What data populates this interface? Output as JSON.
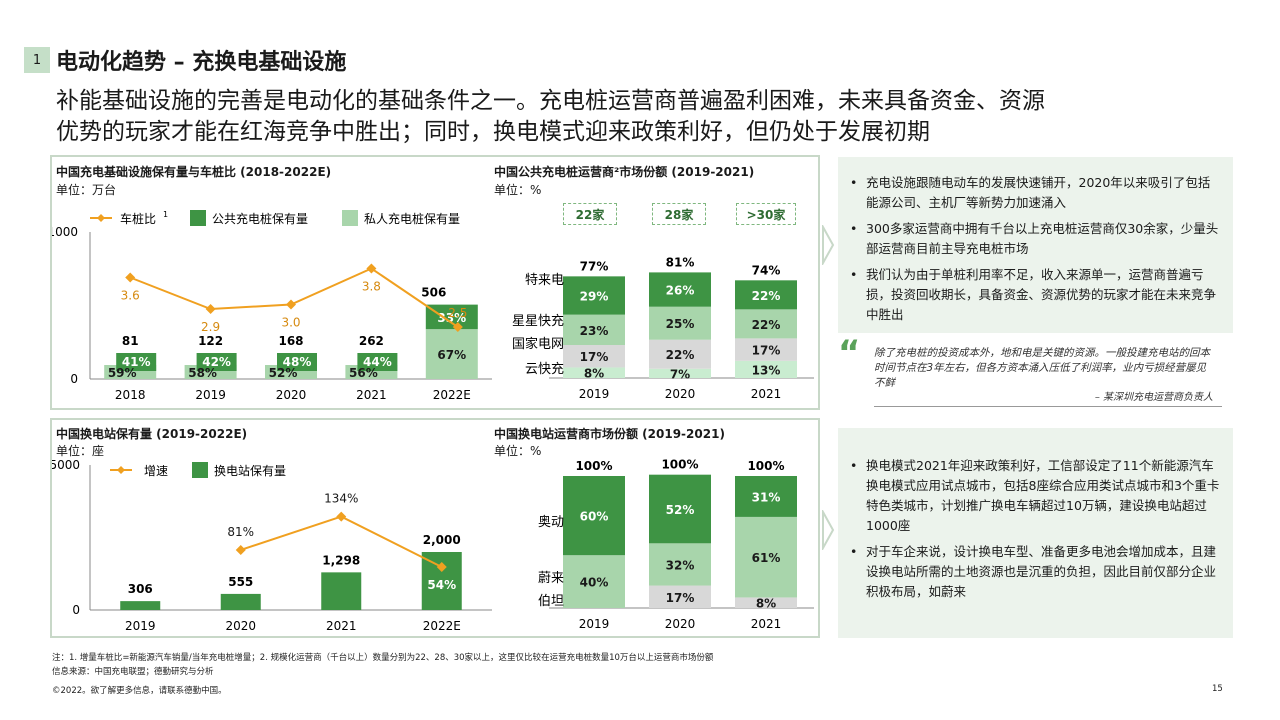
{
  "header": {
    "badge": "1",
    "title": "电动化趋势 – 充换电基础设施",
    "subtitle_line1": "补能基础设施的完善是电动化的基础条件之一。充电桩运营商普遍盈利困难，未来具备资金、资源",
    "subtitle_line2": "优势的玩家才能在红海竞争中胜出；同时，换电模式迎来政策利好，但仍处于发展初期"
  },
  "charging_infra": {
    "title": "中国充电基础设施保有量与车桩比 (2018-2022E)",
    "unit": "单位：万台",
    "legend": {
      "ratio": "车桩比",
      "ratio_sup": "1",
      "public": "公共充电桩保有量",
      "private": "私人充电桩保有量"
    },
    "y_ticks": [
      "1000",
      "0"
    ]
  },
  "operator_share": {
    "title": "中国公共充电桩运营商²市场份额 (2019-2021)",
    "unit": "单位：%",
    "tags": [
      "22家",
      "28家",
      ">30家"
    ],
    "row_labels": [
      "特来电",
      "星星快充",
      "国家电网",
      "云快充"
    ]
  },
  "swap_stations": {
    "title": "中国换电站保有量 (2019-2022E)",
    "unit": "单位：座",
    "legend": {
      "growth": "增速",
      "stations": "换电站保有量"
    },
    "y_ticks": [
      "5000",
      "0"
    ]
  },
  "swap_share": {
    "title": "中国换电站运营商市场份额 (2019-2021)",
    "unit": "单位：%",
    "row_labels": [
      "奥动",
      "蔚来",
      "伯坦"
    ]
  },
  "chart_data": [
    {
      "type": "bar",
      "stacked": true,
      "categories": [
        "2018",
        "2019",
        "2020",
        "2021",
        "2022E"
      ],
      "totals": [
        81,
        122,
        168,
        262,
        506
      ],
      "ylim": [
        0,
        1000
      ],
      "series": [
        {
          "name": "私人充电桩保有量",
          "values_pct": [
            59,
            58,
            52,
            56,
            67
          ],
          "color": "#a8d5ab"
        },
        {
          "name": "公共充电桩保有量",
          "values_pct": [
            41,
            42,
            48,
            44,
            33
          ],
          "color": "#3e9444"
        }
      ],
      "line": {
        "name": "车桩比",
        "values": [
          3.6,
          2.9,
          3.0,
          3.8,
          2.5
        ],
        "color": "#f0a020"
      }
    },
    {
      "type": "bar",
      "stacked": true,
      "categories": [
        "2019",
        "2020",
        "2021"
      ],
      "totals": [
        "77%",
        "81%",
        "74%"
      ],
      "series": [
        {
          "name": "云快充",
          "values": [
            8,
            7,
            13
          ],
          "color": "#c9ecd0"
        },
        {
          "name": "国家电网",
          "values": [
            17,
            22,
            17
          ],
          "color": "#d8d8d8"
        },
        {
          "name": "星星快充",
          "values": [
            23,
            25,
            22
          ],
          "color": "#a8d5ab"
        },
        {
          "name": "特来电",
          "values": [
            29,
            26,
            22
          ],
          "color": "#3e9444"
        }
      ]
    },
    {
      "type": "bar",
      "categories": [
        "2019",
        "2020",
        "2021",
        "2022E"
      ],
      "values": [
        306,
        555,
        1298,
        2000
      ],
      "value_labels": [
        "306",
        "555",
        "1,298",
        "2,000"
      ],
      "ylim": [
        0,
        5000
      ],
      "color": "#3e9444",
      "line": {
        "name": "增速",
        "values": [
          81,
          134,
          54
        ],
        "x_categories": [
          "2020",
          "2021",
          "2022E"
        ],
        "labels": [
          "81%",
          "134%",
          "54%"
        ],
        "color": "#f0a020"
      }
    },
    {
      "type": "bar",
      "stacked": true,
      "categories": [
        "2019",
        "2020",
        "2021"
      ],
      "totals": [
        "100%",
        "100%",
        "100%"
      ],
      "series": [
        {
          "name": "伯坦",
          "values": [
            0,
            17,
            8
          ],
          "color": "#d8d8d8"
        },
        {
          "name": "蔚来",
          "values": [
            40,
            32,
            61
          ],
          "color": "#a8d5ab"
        },
        {
          "name": "奥动",
          "values": [
            60,
            52,
            31
          ],
          "color": "#3e9444"
        }
      ]
    }
  ],
  "right_box1": {
    "bullets": [
      "充电设施跟随电动车的发展快速铺开，2020年以来吸引了包括能源公司、主机厂等新势力加速涌入",
      "300多家运营商中拥有千台以上充电桩运营商仅30余家，少量头部运营商目前主导充电桩市场",
      "我们认为由于单桩利用率不足，收入来源单一，运营商普遍亏损，投资回收期长，具备资金、资源优势的玩家才能在未来竞争中胜出"
    ]
  },
  "quote": {
    "mark": "“",
    "text": "除了充电桩的投资成本外，地和电是关键的资源。一般投建充电站的回本时间节点在3年左右，但各方资本涌入压低了利润率，业内亏损经营屡见不鲜",
    "source": "– 某深圳充电运营商负责人"
  },
  "right_box2": {
    "bullets": [
      "换电模式2021年迎来政策利好，工信部设定了11个新能源汽车换电模式应用试点城市，包括8座综合应用类试点城市和3个重卡特色类城市，计划推广换电车辆超过10万辆，建设换电站超过1000座",
      "对于车企来说，设计换电车型、准备更多电池会增加成本，且建设换电站所需的土地资源也是沉重的负担，因此目前仅部分企业积极布局，如蔚来"
    ]
  },
  "footer": {
    "note": "注：1. 增量车桩比=新能源汽车销量/当年充电桩增量；2. 规模化运营商（千台以上）数量分别为22、28、30家以上，这里仅比较在运营充电桩数量10万台以上运营商市场份额",
    "source": "信息来源：中国充电联盟；德勤研究与分析",
    "copyright": "©2022。欲了解更多信息，请联系德勤中国。",
    "page": "15"
  }
}
